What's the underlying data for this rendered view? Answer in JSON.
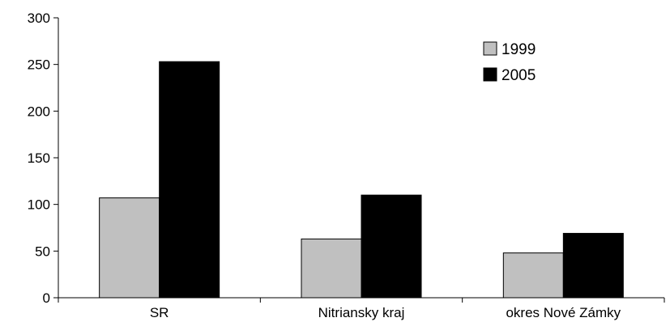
{
  "chart_data": {
    "type": "bar",
    "categories": [
      "SR",
      "Nitriansky kraj",
      "okres Nové Zámky"
    ],
    "series": [
      {
        "name": "1999",
        "values": [
          107,
          63,
          48
        ],
        "color": "#c0c0c0"
      },
      {
        "name": "2005",
        "values": [
          253,
          110,
          69
        ],
        "color": "#000000"
      }
    ],
    "title": "",
    "xlabel": "",
    "ylabel": "",
    "ylim": [
      0,
      300
    ],
    "yticks": [
      0,
      50,
      100,
      150,
      200,
      250,
      300
    ],
    "grid": false,
    "legend_position": "top-right"
  }
}
